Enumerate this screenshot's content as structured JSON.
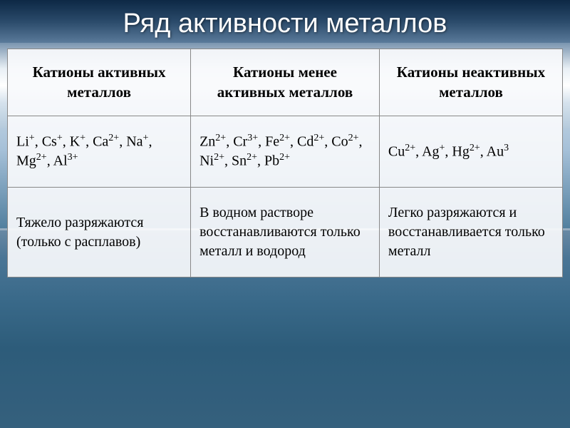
{
  "title": "Ряд активности металлов",
  "table": {
    "background_color": "#f8fafc",
    "border_color": "#888888",
    "headers": {
      "col1": "Катионы активных металлов",
      "col2": "Катионы менее активных металлов",
      "col3": "Катионы неактивных металлов"
    },
    "ions": {
      "col1_html": "Li<sup>+</sup>, Cs<sup>+</sup>, K<sup>+</sup>, Ca<sup>2+</sup>, Na<sup>+</sup>, Mg<sup>2+</sup>, Al<sup>3+</sup>",
      "col2_html": "Zn<sup>2+</sup>, Cr<sup>3+</sup>, Fe<sup>2+</sup>, Cd<sup>2+</sup>, Co<sup>2+</sup>, Ni<sup>2+</sup>, Sn<sup>2+</sup>, Pb<sup>2+</sup>",
      "col3_html": "Cu<sup>2+</sup>, Ag<sup>+</sup>, Hg<sup>2+</sup>, Au<sup>3</sup>"
    },
    "descriptions": {
      "col1": "Тяжело разряжаются (только с расплавов)",
      "col2": "В водном растворе восстанавливаются только металл и водород",
      "col3": "Легко разряжаются и восстанавливается только металл"
    }
  },
  "styling": {
    "title_color": "#ffffff",
    "title_fontsize": 38,
    "header_fontsize": 21,
    "cell_fontsize": 20,
    "font_family": "Times New Roman",
    "title_font_family": "Arial",
    "bg_gradient_top": "#1a3a5c",
    "bg_gradient_clouds": "#ffffff",
    "bg_gradient_water": "#3a6a8a"
  }
}
